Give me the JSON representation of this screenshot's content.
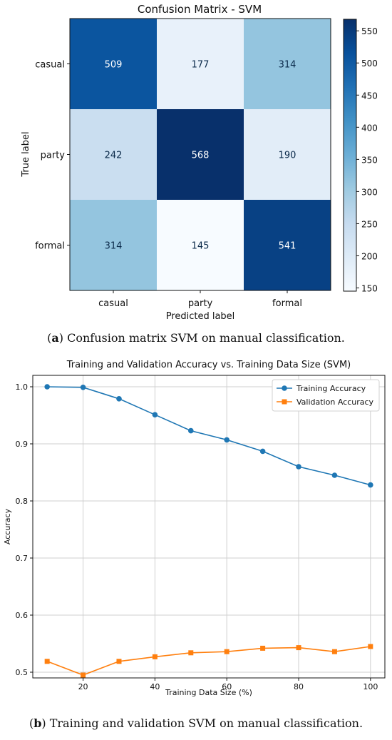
{
  "chart_data": [
    {
      "type": "heatmap",
      "title": "Confusion Matrix - SVM",
      "xlabel": "Predicted label",
      "ylabel": "True label",
      "x_categories": [
        "casual",
        "party",
        "formal"
      ],
      "y_categories": [
        "casual",
        "party",
        "formal"
      ],
      "matrix": [
        [
          509,
          177,
          314
        ],
        [
          242,
          568,
          190
        ],
        [
          314,
          145,
          541
        ]
      ],
      "colorbar": {
        "min": 145,
        "max": 568,
        "ticks": [
          150,
          200,
          250,
          300,
          350,
          400,
          450,
          500,
          550
        ],
        "colormap": "Blues"
      }
    },
    {
      "type": "line",
      "title": "Training and Validation Accuracy vs. Training Data Size (SVM)",
      "xlabel": "Training Data Size (%)",
      "ylabel": "Accuracy",
      "x": [
        10,
        20,
        30,
        40,
        50,
        60,
        70,
        80,
        90,
        100
      ],
      "xlim": [
        6,
        104
      ],
      "ylim": [
        0.49,
        1.02
      ],
      "xticks": [
        20,
        40,
        60,
        80,
        100
      ],
      "yticks": [
        0.5,
        0.6,
        0.7,
        0.8,
        0.9,
        1.0
      ],
      "ytick_labels": [
        "0.5",
        "0.6",
        "0.7",
        "0.8",
        "0.9",
        "1.0"
      ],
      "grid": true,
      "legend_position": "top-right",
      "series": [
        {
          "name": "Training Accuracy",
          "color": "#1f77b4",
          "marker": "circle",
          "values": [
            1.0,
            0.999,
            0.979,
            0.951,
            0.923,
            0.907,
            0.887,
            0.86,
            0.845,
            0.828
          ]
        },
        {
          "name": "Validation Accuracy",
          "color": "#ff7f0e",
          "marker": "square",
          "values": [
            0.519,
            0.495,
            0.519,
            0.527,
            0.534,
            0.536,
            0.542,
            0.543,
            0.536,
            0.545
          ]
        }
      ]
    }
  ],
  "captions": {
    "a_label": "a",
    "a_text": " Confusion matrix SVM on manual classification.",
    "b_label": "b",
    "b_text": " Training and validation SVM on manual classification."
  }
}
